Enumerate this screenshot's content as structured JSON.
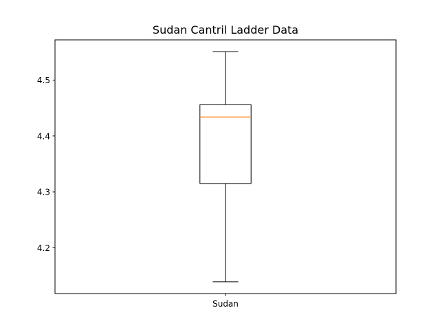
{
  "chart_data": {
    "type": "box",
    "title": "Sudan Cantril Ladder Data",
    "xlabel": "",
    "ylabel": "",
    "categories": [
      "Sudan"
    ],
    "boxes": [
      {
        "name": "Sudan",
        "whisker_low": 4.139,
        "q1": 4.315,
        "median": 4.434,
        "q3": 4.456,
        "whisker_high": 4.551
      }
    ],
    "ylim": [
      4.118,
      4.572
    ],
    "yticks": [
      4.2,
      4.3,
      4.4,
      4.5
    ],
    "ytick_labels": [
      "4.2",
      "4.3",
      "4.4",
      "4.5"
    ],
    "grid": false,
    "colors": {
      "box": "#000000",
      "median": "#ff7f0e",
      "axes": "#000000",
      "background": "#ffffff"
    }
  }
}
